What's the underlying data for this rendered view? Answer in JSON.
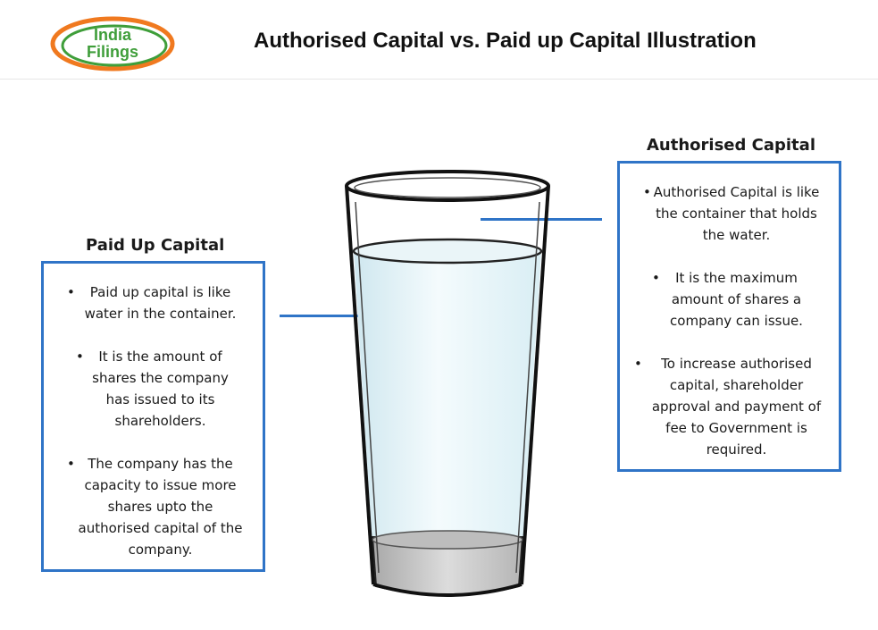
{
  "logo": {
    "line1": "India",
    "line2": "Filings"
  },
  "title": "Authorised Capital vs. Paid up Capital Illustration",
  "paid_up": {
    "heading": "Paid Up Capital",
    "bullets": [
      "Paid up capital is like water in the container.",
      "It is the amount of shares the company has issued to its shareholders.",
      "The company has the capacity to issue more shares upto the authorised capital of the company."
    ]
  },
  "authorised": {
    "heading": "Authorised Capital",
    "bullets": [
      "Authorised Capital is like the container that holds the water.",
      "It is the maximum amount of shares a company can issue.",
      "To increase authorised capital, shareholder approval and payment of fee to Government is required."
    ]
  },
  "colors": {
    "accent_blue": "#2f74c7",
    "logo_orange": "#f0791f",
    "logo_green": "#3f9e3a"
  }
}
